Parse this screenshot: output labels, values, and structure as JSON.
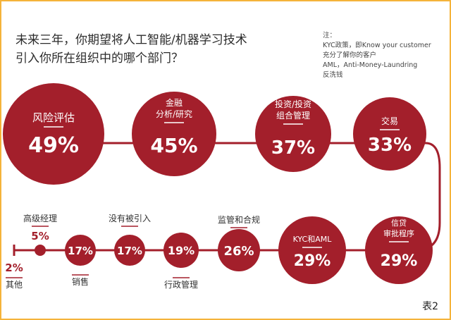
{
  "title": "未来三年，你期望将人工智能/机器学习技术引入你所在组织中的哪个部门？",
  "title_lines": [
    "未来三年，你期望将人工智能/机器学习技术",
    "引入你所在组织中的哪个部门？"
  ],
  "note": {
    "heading": "注：",
    "lines": [
      "KYC政策，即Know your customer",
      "充分了解你的客户",
      "AML，Anti-Money-Laundring",
      "反洗钱"
    ]
  },
  "figure_label": "表2",
  "colors": {
    "accent": "#a31f2b",
    "track": "#a31f2b",
    "frame": "#f5b33a"
  },
  "chart_data": {
    "type": "bubble",
    "title": "未来三年，你期望将人工智能/机器学习技术引入你所在组织中的哪个部门？",
    "unit": "%",
    "categories": [
      "风险评估",
      "金融分析/研究",
      "投资/投资组合管理",
      "交易",
      "信贷审批程序",
      "KYC和AML",
      "监管和合规",
      "行政管理",
      "没有被引入",
      "销售",
      "高级经理",
      "其他"
    ],
    "values": [
      49,
      45,
      37,
      33,
      29,
      29,
      26,
      19,
      17,
      17,
      5,
      2
    ],
    "items": [
      {
        "label_lines": [
          "风险评估"
        ],
        "value": "49%"
      },
      {
        "label_lines": [
          "金融",
          "分析/研究"
        ],
        "value": "45%"
      },
      {
        "label_lines": [
          "投资/投资",
          "组合管理"
        ],
        "value": "37%"
      },
      {
        "label_lines": [
          "交易"
        ],
        "value": "33%"
      },
      {
        "label_lines": [
          "信贷",
          "审批程序"
        ],
        "value": "29%"
      },
      {
        "label_lines": [
          "KYC和AML"
        ],
        "value": "29%"
      },
      {
        "label_lines": [
          "监管和合规"
        ],
        "value": "26%"
      },
      {
        "label_lines": [
          "行政管理"
        ],
        "value": "19%"
      },
      {
        "label_lines": [
          "没有被引入"
        ],
        "value": "17%"
      },
      {
        "label_lines": [
          "销售"
        ],
        "value": "17%"
      },
      {
        "label_lines": [
          "高级经理"
        ],
        "value": "5%"
      },
      {
        "label_lines": [
          "其他"
        ],
        "value": "2%"
      }
    ]
  }
}
